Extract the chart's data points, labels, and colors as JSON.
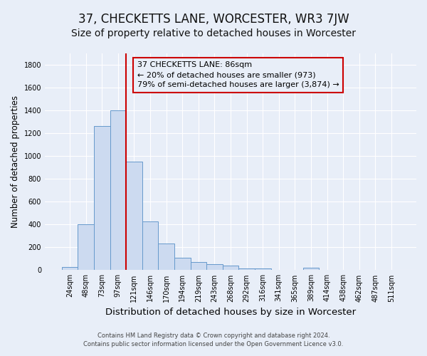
{
  "title": "37, CHECKETTS LANE, WORCESTER, WR3 7JW",
  "subtitle": "Size of property relative to detached houses in Worcester",
  "xlabel": "Distribution of detached houses by size in Worcester",
  "ylabel": "Number of detached properties",
  "bar_labels": [
    "24sqm",
    "48sqm",
    "73sqm",
    "97sqm",
    "121sqm",
    "146sqm",
    "170sqm",
    "194sqm",
    "219sqm",
    "243sqm",
    "268sqm",
    "292sqm",
    "316sqm",
    "341sqm",
    "365sqm",
    "389sqm",
    "414sqm",
    "438sqm",
    "462sqm",
    "487sqm",
    "511sqm"
  ],
  "bar_values": [
    25,
    400,
    1265,
    1400,
    950,
    425,
    235,
    110,
    70,
    50,
    40,
    15,
    15,
    0,
    0,
    20,
    0,
    0,
    0,
    0,
    0
  ],
  "bar_color": "#ccdaf0",
  "bar_edge_color": "#6699cc",
  "bar_width": 1.0,
  "vline_color": "#cc0000",
  "vline_x": 3.5,
  "ylim": [
    0,
    1900
  ],
  "yticks": [
    0,
    200,
    400,
    600,
    800,
    1000,
    1200,
    1400,
    1600,
    1800
  ],
  "annotation_lines": [
    "37 CHECKETTS LANE: 86sqm",
    "← 20% of detached houses are smaller (973)",
    "79% of semi-detached houses are larger (3,874) →"
  ],
  "footer_line1": "Contains HM Land Registry data © Crown copyright and database right 2024.",
  "footer_line2": "Contains public sector information licensed under the Open Government Licence v3.0.",
  "bg_color": "#e8eef8",
  "grid_color": "#ffffff",
  "title_fontsize": 12,
  "subtitle_fontsize": 10,
  "xlabel_fontsize": 9.5,
  "ylabel_fontsize": 8.5,
  "tick_fontsize": 7,
  "footer_fontsize": 6,
  "ann_fontsize": 8
}
